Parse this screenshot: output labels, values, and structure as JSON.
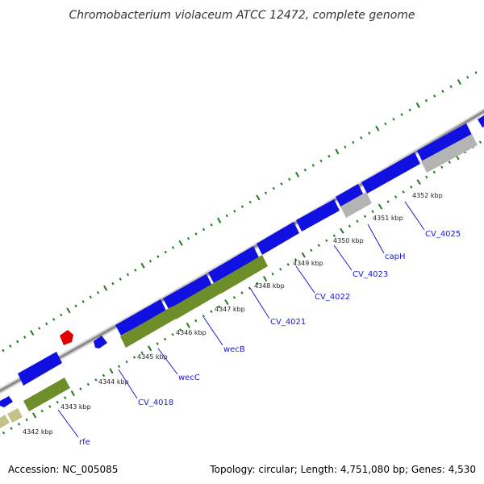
{
  "title": "Chromobacterium violaceum ATCC 12472, complete genome",
  "footer": {
    "accession": "Accession: NC_005085",
    "summary": "Topology: circular; Length: 4,751,080 bp; Genes: 4,530"
  },
  "colors": {
    "cds_forward": "#1010e0",
    "cds_highlight": "#6e8e2a",
    "cds_gray": "#b4b4b4",
    "cds_tan": "#c2c28a",
    "feature_red": "#e00000",
    "backbone": "#8a8a8a",
    "tick_dash": "#1f7a1f",
    "label_link": "#1a1ad0"
  },
  "position_ticks": [
    {
      "kbp": 4342,
      "label": "4342 kbp"
    },
    {
      "kbp": 4343,
      "label": "4343 kbp"
    },
    {
      "kbp": 4344,
      "label": "4344 kbp"
    },
    {
      "kbp": 4345,
      "label": "4345 kbp"
    },
    {
      "kbp": 4346,
      "label": "4346 kbp"
    },
    {
      "kbp": 4347,
      "label": "4347 kbp"
    },
    {
      "kbp": 4348,
      "label": "4348 kbp"
    },
    {
      "kbp": 4349,
      "label": "4349 kbp"
    },
    {
      "kbp": 4350,
      "label": "4350 kbp"
    },
    {
      "kbp": 4351,
      "label": "4351 kbp"
    },
    {
      "kbp": 4352,
      "label": "4352 kbp"
    }
  ],
  "gene_labels": [
    {
      "name": "rfe"
    },
    {
      "name": "CV_4018"
    },
    {
      "name": "wecC"
    },
    {
      "name": "wecB"
    },
    {
      "name": "CV_4021"
    },
    {
      "name": "CV_4022"
    },
    {
      "name": "CV_4023"
    },
    {
      "name": "capH"
    },
    {
      "name": "CV_4025"
    }
  ]
}
